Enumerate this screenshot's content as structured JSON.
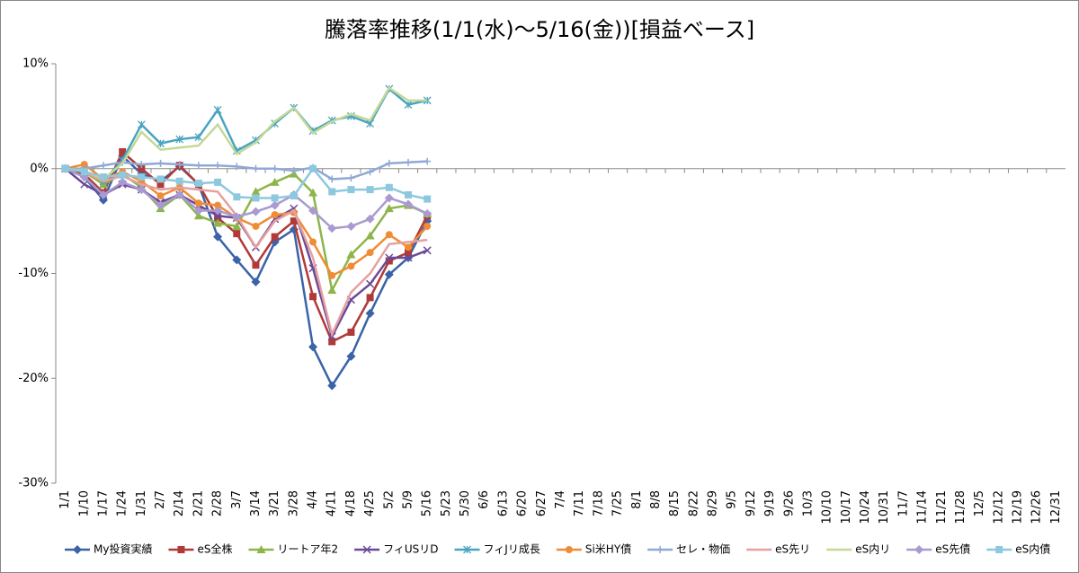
{
  "chart_data": {
    "type": "line",
    "title": "騰落率推移(1/1(水)～5/16(金))[損益ベース]",
    "categories": [
      "1/1",
      "1/10",
      "1/17",
      "1/24",
      "1/31",
      "2/7",
      "2/14",
      "2/21",
      "2/28",
      "3/7",
      "3/14",
      "3/21",
      "3/28",
      "4/4",
      "4/11",
      "4/18",
      "4/25",
      "5/2",
      "5/9",
      "5/16",
      "5/23",
      "5/30",
      "6/6",
      "6/13",
      "6/20",
      "6/27",
      "7/4",
      "7/11",
      "7/18",
      "7/25",
      "8/1",
      "8/8",
      "8/15",
      "8/22",
      "8/29",
      "9/5",
      "9/12",
      "9/19",
      "9/26",
      "10/3",
      "10/10",
      "10/17",
      "10/24",
      "10/31",
      "11/7",
      "11/14",
      "11/21",
      "11/28",
      "12/5",
      "12/12",
      "12/19",
      "12/26",
      "12/31"
    ],
    "ylim": [
      -30,
      10
    ],
    "yticks": [
      {
        "value": -30,
        "label": "-30%"
      },
      {
        "value": -20,
        "label": "-20%"
      },
      {
        "value": -10,
        "label": "-10%"
      },
      {
        "value": 0,
        "label": "0%"
      },
      {
        "value": 10,
        "label": "10%"
      }
    ],
    "grid": false,
    "legend": "bottom",
    "series": [
      {
        "name": "My投資実績",
        "color": "#3a63a8",
        "marker": "diamond",
        "values": [
          0,
          -0.8,
          -3.0,
          1.2,
          -0.5,
          -1.2,
          0.2,
          -1.5,
          -6.5,
          -8.7,
          -10.8,
          -7.0,
          -5.8,
          -17.0,
          -20.7,
          -17.9,
          -13.8,
          -10.1,
          -8.5,
          -5.0,
          null,
          null,
          null,
          null,
          null,
          null,
          null,
          null,
          null,
          null,
          null,
          null,
          null,
          null,
          null,
          null,
          null,
          null,
          null,
          null,
          null,
          null,
          null,
          null,
          null,
          null,
          null,
          null,
          null,
          null,
          null,
          null,
          null
        ]
      },
      {
        "name": "eS全株",
        "color": "#b03a38",
        "marker": "square",
        "values": [
          0,
          -0.5,
          -2.3,
          1.6,
          0,
          -1.5,
          0.3,
          -1.5,
          -4.7,
          -6.2,
          -9.2,
          -6.5,
          -5.0,
          -12.2,
          -16.5,
          -15.6,
          -12.3,
          -8.8,
          -8.0,
          -4.5,
          null,
          null,
          null,
          null,
          null,
          null,
          null,
          null,
          null,
          null,
          null,
          null,
          null,
          null,
          null,
          null,
          null,
          null,
          null,
          null,
          null,
          null,
          null,
          null,
          null,
          null,
          null,
          null,
          null,
          null,
          null,
          null,
          null
        ]
      },
      {
        "name": "リートア年2",
        "color": "#8db54a",
        "marker": "triangle",
        "values": [
          0,
          -0.3,
          -1.5,
          -0.5,
          -1.8,
          -3.8,
          -2.5,
          -4.5,
          -5.2,
          -5.5,
          -2.2,
          -1.3,
          -0.5,
          -2.3,
          -11.6,
          -8.2,
          -6.4,
          -3.8,
          -3.5,
          -4.3,
          null,
          null,
          null,
          null,
          null,
          null,
          null,
          null,
          null,
          null,
          null,
          null,
          null,
          null,
          null,
          null,
          null,
          null,
          null,
          null,
          null,
          null,
          null,
          null,
          null,
          null,
          null,
          null,
          null,
          null,
          null,
          null,
          null
        ]
      },
      {
        "name": "フィUSリD",
        "color": "#6a4a98",
        "marker": "x",
        "values": [
          0,
          -1.5,
          -2.5,
          -1.5,
          -2.0,
          -3.2,
          -2.5,
          -3.5,
          -4.5,
          -4.7,
          -7.5,
          -4.8,
          -3.8,
          -9.5,
          -16.0,
          -12.5,
          -11.0,
          -8.5,
          -8.5,
          -7.8,
          null,
          null,
          null,
          null,
          null,
          null,
          null,
          null,
          null,
          null,
          null,
          null,
          null,
          null,
          null,
          null,
          null,
          null,
          null,
          null,
          null,
          null,
          null,
          null,
          null,
          null,
          null,
          null,
          null,
          null,
          null,
          null,
          null
        ]
      },
      {
        "name": "フィJリ成長",
        "color": "#4aa4c0",
        "marker": "star",
        "values": [
          0,
          -0.2,
          -1.2,
          0.8,
          4.2,
          2.4,
          2.8,
          3.0,
          5.6,
          1.7,
          2.7,
          4.3,
          5.8,
          3.6,
          4.6,
          5.0,
          4.3,
          7.6,
          6.1,
          6.5,
          null,
          null,
          null,
          null,
          null,
          null,
          null,
          null,
          null,
          null,
          null,
          null,
          null,
          null,
          null,
          null,
          null,
          null,
          null,
          null,
          null,
          null,
          null,
          null,
          null,
          null,
          null,
          null,
          null,
          null,
          null,
          null,
          null
        ]
      },
      {
        "name": "Si米HY債",
        "color": "#ef8c35",
        "marker": "circle",
        "values": [
          0,
          0.4,
          -1.0,
          -0.3,
          -1.2,
          -2.6,
          -1.8,
          -3.3,
          -3.5,
          -4.7,
          -5.5,
          -4.4,
          -4.2,
          -7.0,
          -10.2,
          -9.3,
          -8.0,
          -6.3,
          -7.5,
          -5.5,
          null,
          null,
          null,
          null,
          null,
          null,
          null,
          null,
          null,
          null,
          null,
          null,
          null,
          null,
          null,
          null,
          null,
          null,
          null,
          null,
          null,
          null,
          null,
          null,
          null,
          null,
          null,
          null,
          null,
          null,
          null,
          null,
          null
        ]
      },
      {
        "name": "セレ・物価",
        "color": "#8fa8d6",
        "marker": "plus",
        "values": [
          0,
          0,
          0.3,
          0.6,
          0.4,
          0.5,
          0.4,
          0.3,
          0.3,
          0.2,
          0,
          0,
          -0.2,
          0.1,
          -1.0,
          -0.9,
          -0.3,
          0.5,
          0.6,
          0.7,
          null,
          null,
          null,
          null,
          null,
          null,
          null,
          null,
          null,
          null,
          null,
          null,
          null,
          null,
          null,
          null,
          null,
          null,
          null,
          null,
          null,
          null,
          null,
          null,
          null,
          null,
          null,
          null,
          null,
          null,
          null,
          null,
          null
        ]
      },
      {
        "name": "eS先リ",
        "color": "#e6a0a0",
        "marker": "none",
        "values": [
          0,
          -0.3,
          -1.2,
          -0.7,
          -1.5,
          -2.0,
          -1.8,
          -2.0,
          -2.2,
          -4.5,
          -7.5,
          -5.0,
          -4.0,
          -8.5,
          -15.8,
          -11.8,
          -10.0,
          -7.2,
          -7.0,
          -6.8,
          null,
          null,
          null,
          null,
          null,
          null,
          null,
          null,
          null,
          null,
          null,
          null,
          null,
          null,
          null,
          null,
          null,
          null,
          null,
          null,
          null,
          null,
          null,
          null,
          null,
          null,
          null,
          null,
          null,
          null,
          null,
          null,
          null
        ]
      },
      {
        "name": "eS内リ",
        "color": "#c4d898",
        "marker": "none",
        "values": [
          0,
          -0.2,
          -1.0,
          0.5,
          3.5,
          1.8,
          2.0,
          2.2,
          4.2,
          1.4,
          2.5,
          4.5,
          5.8,
          3.4,
          4.5,
          5.2,
          4.6,
          7.7,
          6.5,
          6.5,
          null,
          null,
          null,
          null,
          null,
          null,
          null,
          null,
          null,
          null,
          null,
          null,
          null,
          null,
          null,
          null,
          null,
          null,
          null,
          null,
          null,
          null,
          null,
          null,
          null,
          null,
          null,
          null,
          null,
          null,
          null,
          null,
          null
        ]
      },
      {
        "name": "eS先債",
        "color": "#a99ad0",
        "marker": "diamond",
        "values": [
          0,
          -0.8,
          -2.5,
          -1.3,
          -2.0,
          -3.5,
          -2.5,
          -4.0,
          -4.0,
          -4.6,
          -4.1,
          -3.5,
          -2.5,
          -4.0,
          -5.7,
          -5.5,
          -4.8,
          -2.8,
          -3.4,
          -4.3,
          null,
          null,
          null,
          null,
          null,
          null,
          null,
          null,
          null,
          null,
          null,
          null,
          null,
          null,
          null,
          null,
          null,
          null,
          null,
          null,
          null,
          null,
          null,
          null,
          null,
          null,
          null,
          null,
          null,
          null,
          null,
          null,
          null
        ]
      },
      {
        "name": "eS内債",
        "color": "#8ec8df",
        "marker": "square",
        "values": [
          0,
          -0.3,
          -0.8,
          -0.6,
          -0.8,
          -1.0,
          -1.2,
          -1.4,
          -1.3,
          -2.7,
          -2.8,
          -2.8,
          -2.6,
          0,
          -2.2,
          -2.0,
          -2.0,
          -1.8,
          -2.5,
          -2.9,
          null,
          null,
          null,
          null,
          null,
          null,
          null,
          null,
          null,
          null,
          null,
          null,
          null,
          null,
          null,
          null,
          null,
          null,
          null,
          null,
          null,
          null,
          null,
          null,
          null,
          null,
          null,
          null,
          null,
          null,
          null,
          null,
          null
        ]
      }
    ]
  }
}
